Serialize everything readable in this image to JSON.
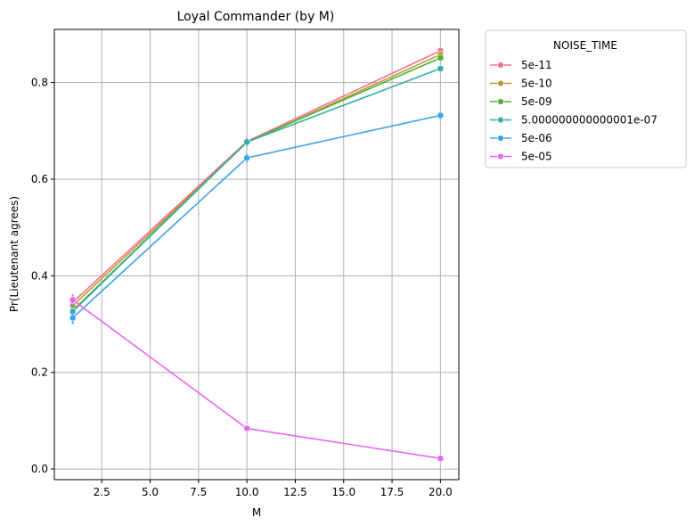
{
  "chart_data": {
    "type": "line",
    "title": "Loyal Commander (by M)",
    "xlabel": "M",
    "ylabel": "Pr(Lieutenant agrees)",
    "xlim": [
      0.05,
      20.95
    ],
    "ylim": [
      -0.022,
      0.91
    ],
    "xticks": [
      2.5,
      5.0,
      7.5,
      10.0,
      12.5,
      15.0,
      17.5,
      20.0
    ],
    "xtick_labels": [
      "2.5",
      "5.0",
      "7.5",
      "10.0",
      "12.5",
      "15.0",
      "17.5",
      "20.0"
    ],
    "yticks": [
      0.0,
      0.2,
      0.4,
      0.6,
      0.8
    ],
    "ytick_labels": [
      "0.0",
      "0.2",
      "0.4",
      "0.6",
      "0.8"
    ],
    "grid": true,
    "legend_title": "NOISE_TIME",
    "legend_position": "outside-top-right",
    "x": [
      1,
      10,
      20
    ],
    "series": [
      {
        "name": "5e-11",
        "color": "#f77189",
        "values": [
          0.345,
          0.678,
          0.866
        ],
        "error": [
          0.012,
          0.008,
          0.006
        ]
      },
      {
        "name": "5e-10",
        "color": "#bb9832",
        "values": [
          0.338,
          0.676,
          0.858
        ],
        "error": [
          0.012,
          0.008,
          0.006
        ]
      },
      {
        "name": "5e-09",
        "color": "#50b131",
        "values": [
          0.328,
          0.677,
          0.851
        ],
        "error": [
          0.012,
          0.008,
          0.006
        ]
      },
      {
        "name": "5.000000000000001e-07",
        "color": "#36ada4",
        "values": [
          0.326,
          0.677,
          0.829
        ],
        "error": [
          0.012,
          0.008,
          0.007
        ]
      },
      {
        "name": "5e-06",
        "color": "#3ba3ec",
        "values": [
          0.313,
          0.644,
          0.732
        ],
        "error": [
          0.013,
          0.009,
          0.008
        ]
      },
      {
        "name": "5e-05",
        "color": "#e866f4",
        "values": [
          0.35,
          0.084,
          0.022
        ],
        "error": [
          0.012,
          0.004,
          0.003
        ]
      }
    ]
  }
}
